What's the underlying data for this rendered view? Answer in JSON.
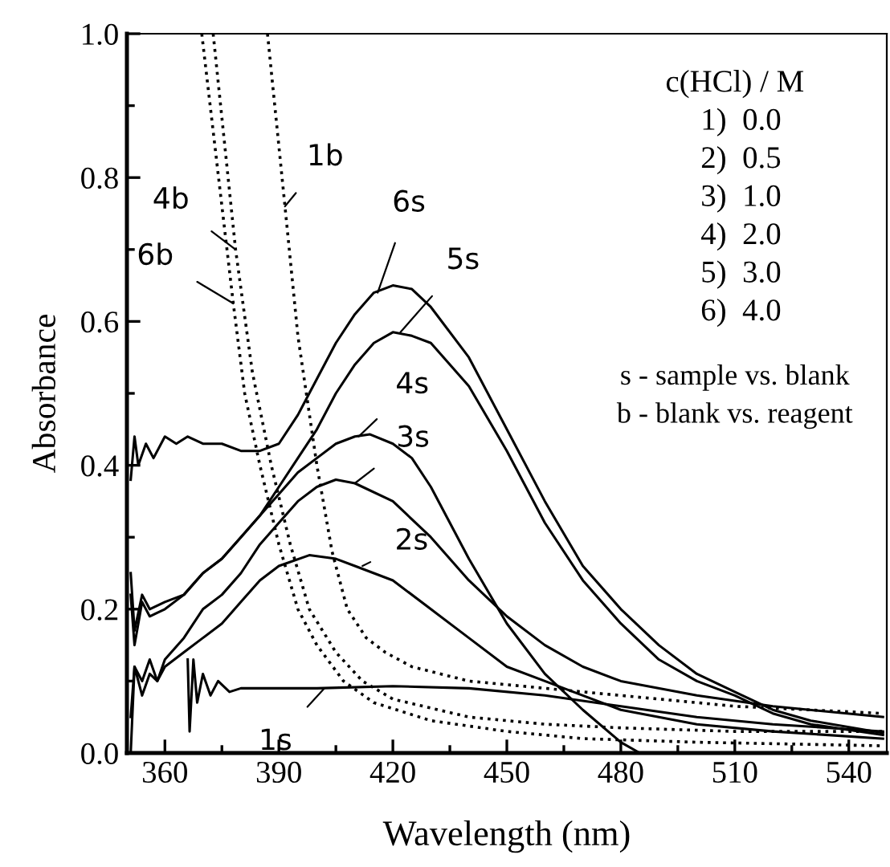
{
  "chart_data": {
    "type": "line",
    "xlabel": "Wavelength (nm)",
    "ylabel": "Absorbance",
    "xlim": [
      350,
      550
    ],
    "ylim": [
      0.0,
      1.0
    ],
    "xticks": [
      360,
      {
        "value": 375,
        "label": null
      },
      390,
      {
        "value": 405,
        "label": null
      },
      420,
      {
        "value": 435,
        "label": null
      },
      450,
      {
        "value": 465,
        "label": null
      },
      480,
      {
        "value": 495,
        "label": null
      },
      510,
      {
        "value": 525,
        "label": null
      },
      540
    ],
    "yticks": [
      "0.0",
      {
        "value": 0.1,
        "label": null
      },
      0.2,
      {
        "value": 0.3,
        "label": null
      },
      0.4,
      {
        "value": 0.5,
        "label": null
      },
      0.6,
      {
        "value": 0.7,
        "label": null
      },
      0.8,
      {
        "value": 0.9,
        "label": null
      },
      "1.0"
    ],
    "grid": false,
    "legend": false,
    "series": [
      {
        "color": "#000000",
        "line_style": "solid",
        "x": [
          351,
          352,
          353,
          355,
          357,
          360,
          363,
          366,
          370,
          375,
          380,
          385,
          390,
          395,
          400,
          405,
          410,
          415,
          420,
          425,
          430,
          440,
          450,
          460,
          470,
          480,
          490,
          500,
          510,
          520,
          530,
          549
        ],
        "values": [
          0.38,
          0.44,
          0.4,
          0.43,
          0.41,
          0.44,
          0.43,
          0.44,
          0.43,
          0.43,
          0.42,
          0.42,
          0.43,
          0.47,
          0.52,
          0.57,
          0.61,
          0.64,
          0.65,
          0.645,
          0.62,
          0.55,
          0.45,
          0.35,
          0.26,
          0.2,
          0.15,
          0.11,
          0.085,
          0.06,
          0.045,
          0.028
        ]
      },
      {
        "color": "#000000",
        "line_style": "solid",
        "x": [
          351,
          352,
          354,
          356,
          360,
          365,
          370,
          375,
          380,
          385,
          390,
          395,
          400,
          405,
          410,
          415,
          420,
          425,
          430,
          440,
          450,
          460,
          470,
          480,
          490,
          500,
          510,
          520,
          530,
          549
        ],
        "values": [
          0.25,
          0.17,
          0.22,
          0.2,
          0.21,
          0.22,
          0.25,
          0.27,
          0.3,
          0.33,
          0.37,
          0.41,
          0.45,
          0.5,
          0.54,
          0.57,
          0.585,
          0.58,
          0.57,
          0.51,
          0.42,
          0.32,
          0.24,
          0.18,
          0.13,
          0.1,
          0.08,
          0.055,
          0.04,
          0.025
        ]
      },
      {
        "color": "#000000",
        "line_style": "solid",
        "x": [
          351,
          352,
          354,
          356,
          360,
          365,
          370,
          375,
          380,
          385,
          390,
          395,
          400,
          405,
          410,
          414,
          420,
          425,
          430,
          440,
          450,
          460,
          470,
          480,
          485
        ],
        "values": [
          0.22,
          0.15,
          0.21,
          0.19,
          0.2,
          0.22,
          0.25,
          0.27,
          0.3,
          0.33,
          0.36,
          0.39,
          0.41,
          0.43,
          0.44,
          0.443,
          0.43,
          0.41,
          0.37,
          0.27,
          0.18,
          0.11,
          0.06,
          0.015,
          0.0
        ]
      },
      {
        "color": "#000000",
        "line_style": "solid",
        "x": [
          351,
          352,
          354,
          356,
          358,
          360,
          365,
          370,
          375,
          380,
          385,
          390,
          395,
          400,
          405,
          410,
          420,
          430,
          440,
          450,
          460,
          470,
          480,
          500,
          520,
          549
        ],
        "values": [
          0.05,
          0.12,
          0.1,
          0.13,
          0.1,
          0.13,
          0.16,
          0.2,
          0.22,
          0.25,
          0.29,
          0.32,
          0.35,
          0.37,
          0.38,
          0.375,
          0.35,
          0.3,
          0.24,
          0.19,
          0.15,
          0.12,
          0.1,
          0.08,
          0.065,
          0.05
        ]
      },
      {
        "color": "#000000",
        "line_style": "solid",
        "x": [
          351,
          352,
          354,
          356,
          358,
          360,
          365,
          370,
          375,
          380,
          385,
          390,
          398,
          405,
          410,
          420,
          430,
          440,
          450,
          460,
          470,
          480,
          500,
          520,
          549
        ],
        "values": [
          0.0,
          0.12,
          0.08,
          0.11,
          0.1,
          0.12,
          0.14,
          0.16,
          0.18,
          0.21,
          0.24,
          0.26,
          0.275,
          0.27,
          0.26,
          0.24,
          0.2,
          0.16,
          0.12,
          0.1,
          0.08,
          0.06,
          0.04,
          0.03,
          0.02
        ]
      },
      {
        "color": "#000000",
        "line_style": "solid",
        "x": [
          366,
          366.5,
          367.5,
          368.5,
          370,
          372,
          374,
          377,
          380,
          390,
          400,
          420,
          440,
          460,
          480,
          500,
          520,
          549
        ],
        "values": [
          0.13,
          0.03,
          0.13,
          0.07,
          0.11,
          0.08,
          0.1,
          0.085,
          0.09,
          0.09,
          0.09,
          0.093,
          0.09,
          0.08,
          0.065,
          0.05,
          0.04,
          0.03
        ]
      },
      {
        "color": "#000000",
        "line_style": "dotted",
        "x": [
          387,
          391.6,
          395,
          400,
          404,
          408,
          413,
          418,
          425,
          440,
          460,
          480,
          510,
          549
        ],
        "values": [
          1.0,
          0.76,
          0.58,
          0.4,
          0.28,
          0.2,
          0.16,
          0.14,
          0.12,
          0.1,
          0.09,
          0.08,
          0.065,
          0.055
        ]
      },
      {
        "color": "#000000",
        "line_style": "dotted",
        "x": [
          372.7,
          378.6,
          383,
          388,
          393,
          398,
          405,
          412,
          420,
          440,
          460,
          480,
          510,
          549
        ],
        "values": [
          1.0,
          0.7,
          0.53,
          0.4,
          0.29,
          0.2,
          0.14,
          0.1,
          0.075,
          0.05,
          0.04,
          0.035,
          0.03,
          0.03
        ]
      },
      {
        "color": "#000000",
        "line_style": "dotted",
        "x": [
          369.7,
          378,
          381,
          385,
          390,
          395,
          400,
          407,
          415,
          430,
          450,
          470,
          500,
          549
        ],
        "values": [
          1.0,
          0.625,
          0.5,
          0.4,
          0.29,
          0.2,
          0.15,
          0.1,
          0.07,
          0.045,
          0.03,
          0.02,
          0.015,
          0.01
        ]
      }
    ],
    "annotations": [
      {
        "text": "6s",
        "x": 416,
        "y": 0.64
      },
      {
        "text": "5s",
        "x": 422,
        "y": 0.585
      },
      {
        "text": "4s",
        "x": 411,
        "y": 0.44
      },
      {
        "text": "3s",
        "x": 410,
        "y": 0.375
      },
      {
        "text": "2s",
        "x": 412,
        "y": 0.26
      },
      {
        "text": "1s",
        "x": 402,
        "y": 0.09
      },
      {
        "text": "1b",
        "x": 391.6,
        "y": 0.76
      },
      {
        "text": "4b",
        "x": 378.6,
        "y": 0.7
      },
      {
        "text": "6b",
        "x": 378,
        "y": 0.625
      },
      "c(HCl) / M",
      "1)  0.0",
      "2)  0.5",
      "3)  1.0",
      "4)  2.0",
      "5)  3.0",
      "6)  4.0",
      "s - sample vs. blank",
      "b - blank vs. reagent"
    ]
  }
}
